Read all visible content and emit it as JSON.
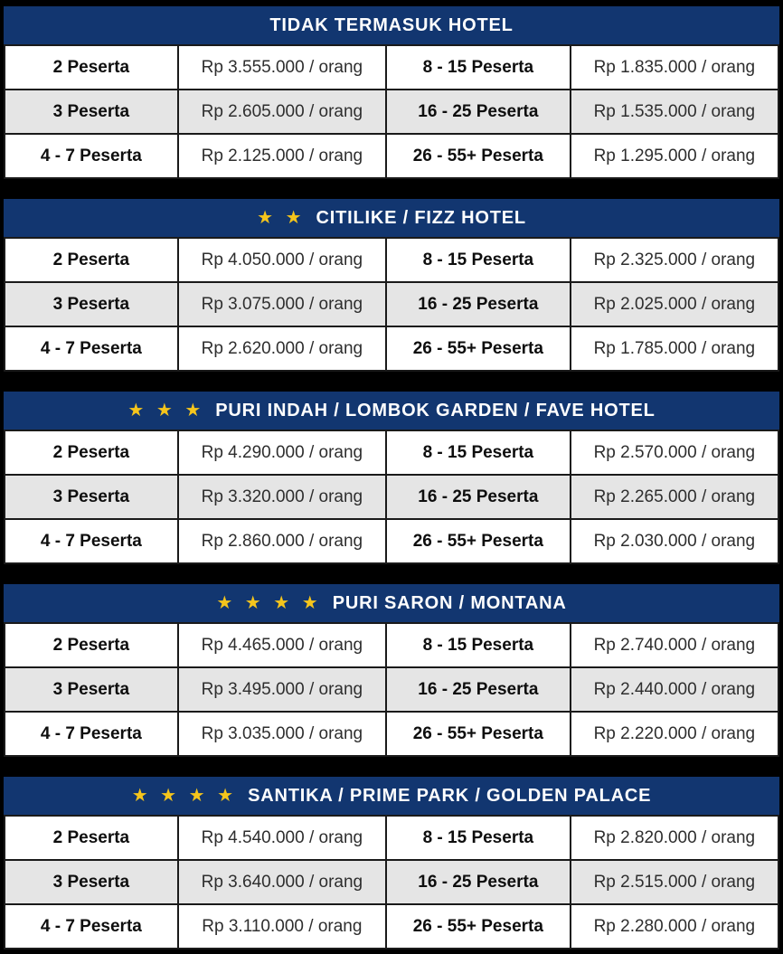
{
  "theme": {
    "page_background": "#000000",
    "header_background": "#123670",
    "header_text_color": "#FFFFFF",
    "star_color": "#F5C51C",
    "row_background": "#FFFFFF",
    "row_alt_background": "#E5E5E5",
    "border_color": "#1A1A1A"
  },
  "sections": [
    {
      "stars": "",
      "title": "TIDAK TERMASUK HOTEL",
      "rows": [
        {
          "c0": "2 Peserta",
          "c1": "Rp 3.555.000 / orang",
          "c2": "8 - 15 Peserta",
          "c3": "Rp 1.835.000 / orang"
        },
        {
          "c0": "3 Peserta",
          "c1": "Rp 2.605.000 / orang",
          "c2": "16 - 25 Peserta",
          "c3": "Rp 1.535.000 / orang"
        },
        {
          "c0": "4 - 7 Peserta",
          "c1": "Rp 2.125.000 / orang",
          "c2": "26 - 55+ Peserta",
          "c3": "Rp 1.295.000 / orang"
        }
      ]
    },
    {
      "stars": "★ ★",
      "title": "CITILIKE / FIZZ HOTEL",
      "rows": [
        {
          "c0": "2 Peserta",
          "c1": "Rp 4.050.000 / orang",
          "c2": "8 - 15 Peserta",
          "c3": "Rp 2.325.000 / orang"
        },
        {
          "c0": "3 Peserta",
          "c1": "Rp 3.075.000 / orang",
          "c2": "16 - 25 Peserta",
          "c3": "Rp 2.025.000 / orang"
        },
        {
          "c0": "4 - 7 Peserta",
          "c1": "Rp 2.620.000 / orang",
          "c2": "26 - 55+ Peserta",
          "c3": "Rp 1.785.000 / orang"
        }
      ]
    },
    {
      "stars": "★ ★ ★",
      "title": "PURI INDAH / LOMBOK GARDEN / FAVE HOTEL",
      "rows": [
        {
          "c0": "2 Peserta",
          "c1": "Rp 4.290.000 / orang",
          "c2": "8 - 15 Peserta",
          "c3": "Rp 2.570.000 / orang"
        },
        {
          "c0": "3 Peserta",
          "c1": "Rp 3.320.000 / orang",
          "c2": "16 - 25 Peserta",
          "c3": "Rp 2.265.000 / orang"
        },
        {
          "c0": "4 - 7 Peserta",
          "c1": "Rp 2.860.000 / orang",
          "c2": "26 - 55+ Peserta",
          "c3": "Rp 2.030.000 / orang"
        }
      ]
    },
    {
      "stars": "★ ★ ★ ★",
      "title": "PURI SARON / MONTANA",
      "rows": [
        {
          "c0": "2 Peserta",
          "c1": "Rp 4.465.000 / orang",
          "c2": "8 - 15 Peserta",
          "c3": "Rp 2.740.000 / orang"
        },
        {
          "c0": "3 Peserta",
          "c1": "Rp 3.495.000 / orang",
          "c2": "16 - 25 Peserta",
          "c3": "Rp 2.440.000 / orang"
        },
        {
          "c0": "4 - 7 Peserta",
          "c1": "Rp 3.035.000 / orang",
          "c2": "26 - 55+ Peserta",
          "c3": "Rp 2.220.000 / orang"
        }
      ]
    },
    {
      "stars": "★ ★ ★ ★",
      "title": "SANTIKA / PRIME PARK / GOLDEN PALACE",
      "rows": [
        {
          "c0": "2 Peserta",
          "c1": "Rp 4.540.000 / orang",
          "c2": "8 - 15 Peserta",
          "c3": "Rp 2.820.000 / orang"
        },
        {
          "c0": "3 Peserta",
          "c1": "Rp 3.640.000 / orang",
          "c2": "16 - 25 Peserta",
          "c3": "Rp 2.515.000 / orang"
        },
        {
          "c0": "4 - 7 Peserta",
          "c1": "Rp 3.110.000 / orang",
          "c2": "26 - 55+ Peserta",
          "c3": "Rp 2.280.000 / orang"
        }
      ]
    }
  ]
}
